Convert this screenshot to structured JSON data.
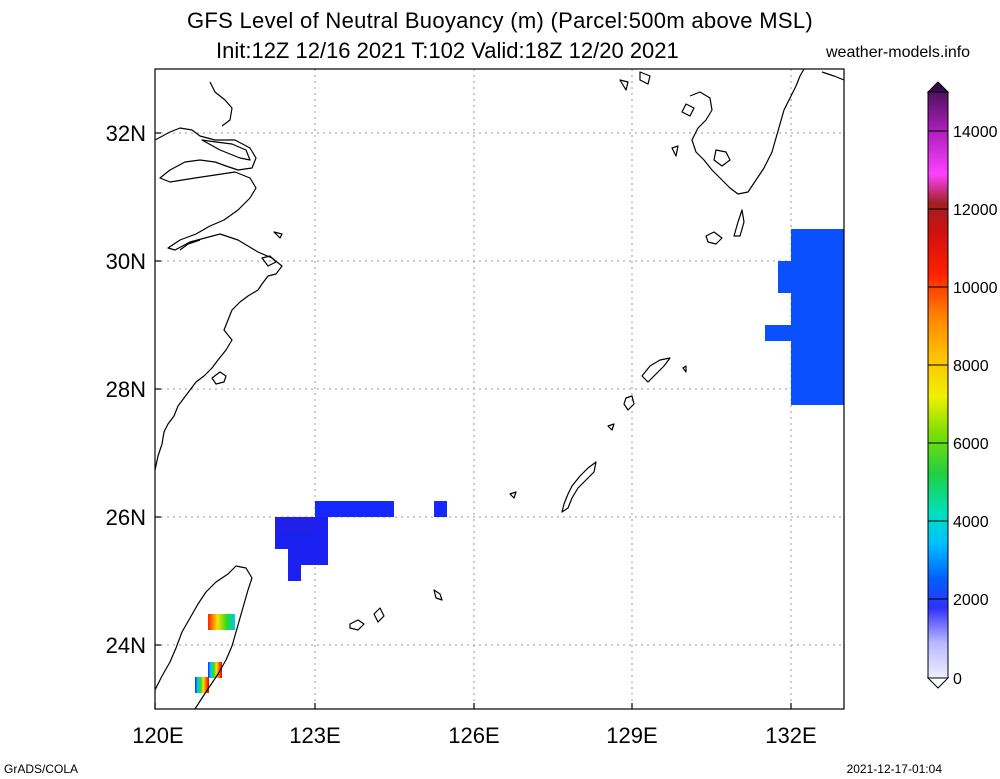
{
  "title": {
    "line1": "GFS Level of Neutral Buoyancy (m) (Parcel:500m above MSL)",
    "line2": "Init:12Z 12/16 2021 T:102 Valid:18Z 12/20 2021",
    "site": "weather-models.info"
  },
  "map": {
    "lon_labels": [
      "120E",
      "123E",
      "126E",
      "129E",
      "132E"
    ],
    "lat_labels": [
      "32N",
      "30N",
      "28N",
      "26N",
      "24N"
    ],
    "grid": "dotted"
  },
  "colorbar": {
    "labels": [
      "0",
      "2000",
      "4000",
      "6000",
      "8000",
      "10000",
      "12000",
      "14000"
    ],
    "range": [
      0,
      15000
    ]
  },
  "footer": {
    "left": "GrADS/COLA",
    "right": "2021-12-17-01:04"
  }
}
